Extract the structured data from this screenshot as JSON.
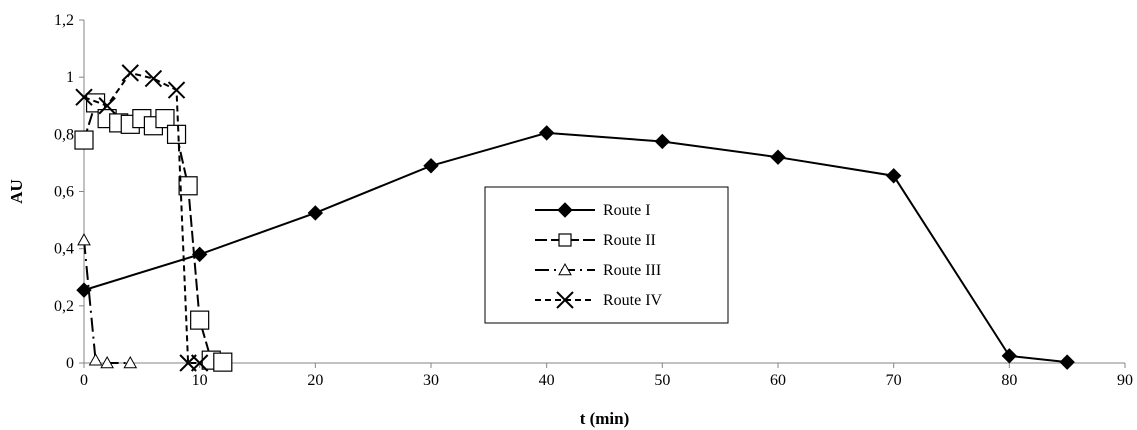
{
  "chart_data": {
    "type": "line",
    "xlabel": "t (min)",
    "ylabel": "AU",
    "xlim": [
      0,
      90
    ],
    "ylim": [
      0,
      1.2
    ],
    "x_ticks": [
      "0",
      "10",
      "20",
      "30",
      "40",
      "50",
      "60",
      "70",
      "80",
      "90"
    ],
    "y_ticks": [
      "0",
      "0,2",
      "0,4",
      "0,6",
      "0,8",
      "1",
      "1,2"
    ],
    "grid": false,
    "legend_position": "center-right",
    "series": [
      {
        "name": "Route I",
        "marker": "diamond-filled",
        "line_style": "solid",
        "points": [
          {
            "x": 0,
            "y": 0.255
          },
          {
            "x": 10,
            "y": 0.38
          },
          {
            "x": 20,
            "y": 0.525
          },
          {
            "x": 30,
            "y": 0.69
          },
          {
            "x": 40,
            "y": 0.805
          },
          {
            "x": 50,
            "y": 0.775
          },
          {
            "x": 60,
            "y": 0.72
          },
          {
            "x": 70,
            "y": 0.655
          },
          {
            "x": 80,
            "y": 0.025
          },
          {
            "x": 85,
            "y": 0.003
          }
        ]
      },
      {
        "name": "Route II",
        "marker": "square-open",
        "line_style": "dash",
        "points": [
          {
            "x": 0,
            "y": 0.78
          },
          {
            "x": 1,
            "y": 0.91
          },
          {
            "x": 2,
            "y": 0.855
          },
          {
            "x": 3,
            "y": 0.84
          },
          {
            "x": 4,
            "y": 0.835
          },
          {
            "x": 5,
            "y": 0.855
          },
          {
            "x": 6,
            "y": 0.83
          },
          {
            "x": 7,
            "y": 0.855
          },
          {
            "x": 8,
            "y": 0.8
          },
          {
            "x": 9,
            "y": 0.62
          },
          {
            "x": 10,
            "y": 0.15
          },
          {
            "x": 11,
            "y": 0.01
          },
          {
            "x": 12,
            "y": 0.003
          }
        ]
      },
      {
        "name": "Route III",
        "marker": "triangle-open",
        "line_style": "dash-dot",
        "points": [
          {
            "x": 0,
            "y": 0.43
          },
          {
            "x": 1,
            "y": 0.01
          },
          {
            "x": 2,
            "y": 0.0
          },
          {
            "x": 4,
            "y": 0.0
          }
        ]
      },
      {
        "name": "Route IV",
        "marker": "x",
        "line_style": "short-dash",
        "points": [
          {
            "x": 0,
            "y": 0.93
          },
          {
            "x": 2,
            "y": 0.9
          },
          {
            "x": 4,
            "y": 1.015
          },
          {
            "x": 6,
            "y": 0.995
          },
          {
            "x": 8,
            "y": 0.955
          },
          {
            "x": 9,
            "y": 0.0
          },
          {
            "x": 10,
            "y": 0.0
          }
        ]
      }
    ]
  }
}
